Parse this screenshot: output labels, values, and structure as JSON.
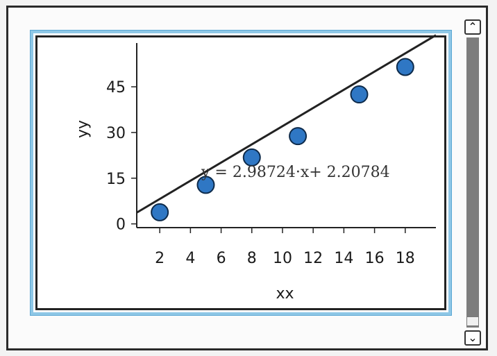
{
  "scrollbar": {
    "up_icon": "chevron-up-icon",
    "down_icon": "chevron-down-icon"
  },
  "chart_data": {
    "type": "scatter",
    "title": "",
    "xlabel": "xx",
    "ylabel": "yy",
    "x_ticks": [
      2,
      4,
      6,
      8,
      10,
      12,
      14,
      16,
      18
    ],
    "y_ticks": [
      0,
      15,
      30,
      45
    ],
    "xlim": [
      0.5,
      20
    ],
    "ylim": [
      -1,
      58
    ],
    "grid": false,
    "series": [
      {
        "values": [
          [
            2,
            3.8
          ],
          [
            5,
            12.8
          ],
          [
            8,
            21.8
          ],
          [
            11,
            28.8
          ],
          [
            15,
            42.5
          ],
          [
            18,
            51.5
          ]
        ],
        "color": "#2f77c4"
      }
    ],
    "fit_line": {
      "slope": 2.98724,
      "intercept": 2.20784,
      "color": "#222222"
    },
    "equation_label": "y = 2.98724·x+ 2.20784"
  }
}
